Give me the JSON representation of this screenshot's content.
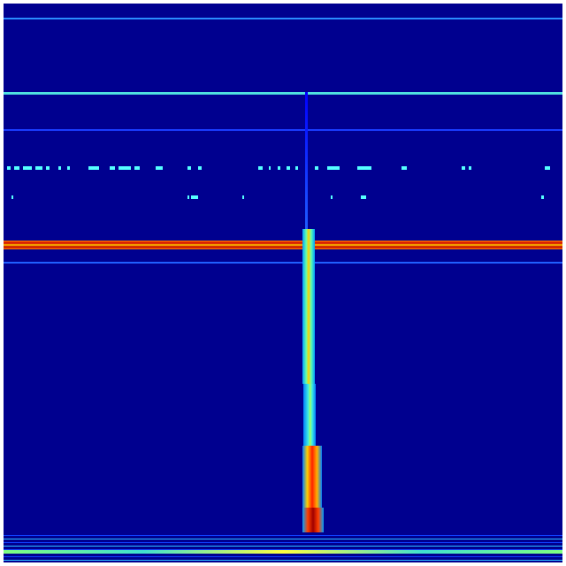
{
  "spectrogram": {
    "colormap": "jet",
    "colors": {
      "background": "#00008f",
      "low": "#0000ff",
      "mid": "#40e0d0",
      "high": "#ffff00",
      "peak": "#ff0000",
      "max": "#800000"
    }
  }
}
